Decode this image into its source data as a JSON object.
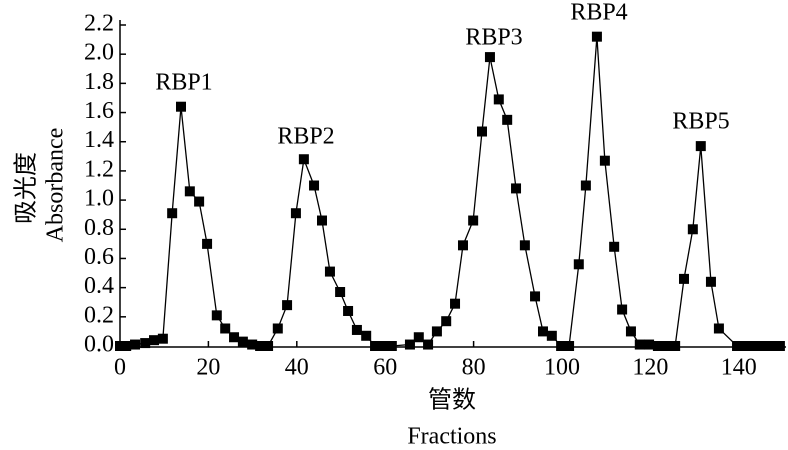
{
  "chart_data": {
    "type": "line",
    "y_label_zh": "吸光度",
    "y_label": "Absorbance",
    "x_label_zh": "管数",
    "x_label": "Fractions",
    "annotations": [
      "RBP1",
      "RBP2",
      "RBP3",
      "RBP4",
      "RBP5"
    ],
    "x": [
      0,
      1.4,
      3.4,
      5.7,
      7.7,
      9.7,
      11.8,
      13.8,
      15.8,
      17.9,
      19.7,
      21.9,
      23.8,
      25.8,
      27.8,
      29.9,
      31.7,
      33.5,
      35.7,
      37.8,
      39.8,
      41.6,
      43.9,
      45.7,
      47.5,
      49.8,
      51.6,
      53.6,
      55.7,
      57.7,
      59.7,
      61.5,
      65.6,
      67.6,
      69.7,
      71.7,
      73.8,
      75.8,
      77.6,
      79.9,
      81.9,
      83.7,
      85.7,
      87.6,
      89.6,
      91.6,
      93.9,
      95.7,
      97.7,
      99.8,
      101.6,
      103.8,
      105.4,
      107.9,
      109.7,
      111.8,
      113.6,
      115.6,
      117.6,
      119.7,
      121.7,
      123.8,
      125.6,
      127.6,
      129.6,
      131.4,
      133.7,
      135.5,
      139.6,
      141.4,
      143.4,
      145.5,
      147.3,
      149.3
    ],
    "values": [
      0,
      0,
      0.01,
      0.02,
      0.04,
      0.05,
      0.91,
      1.64,
      1.06,
      0.99,
      0.7,
      0.21,
      0.12,
      0.06,
      0.03,
      0.01,
      0,
      0,
      0.12,
      0.28,
      0.91,
      1.28,
      1.1,
      0.86,
      0.51,
      0.37,
      0.24,
      0.11,
      0.07,
      0,
      0,
      0,
      0.01,
      0.06,
      0.01,
      0.1,
      0.17,
      0.29,
      0.69,
      0.86,
      1.47,
      1.98,
      1.69,
      1.55,
      1.08,
      0.69,
      0.34,
      0.1,
      0.07,
      0,
      0,
      0.56,
      1.1,
      2.12,
      1.27,
      0.68,
      0.25,
      0.1,
      0.01,
      0.01,
      0,
      0,
      0,
      0.46,
      0.8,
      1.37,
      0.44,
      0.12,
      0,
      0,
      0,
      0,
      0,
      0
    ],
    "color": "#000000",
    "xlim": [
      0,
      150
    ],
    "xticks": [
      0,
      20,
      40,
      60,
      80,
      100,
      120,
      140
    ],
    "ylim": [
      0,
      2.2
    ],
    "yticks": [
      {
        "value": 0,
        "label": "0.0"
      },
      0.2,
      0.4,
      0.6,
      0.8,
      {
        "value": 1,
        "label": "1.0"
      },
      1.2,
      1.4,
      1.6,
      1.8,
      {
        "value": 2,
        "label": "2.0"
      },
      2.2
    ],
    "grid": false
  }
}
